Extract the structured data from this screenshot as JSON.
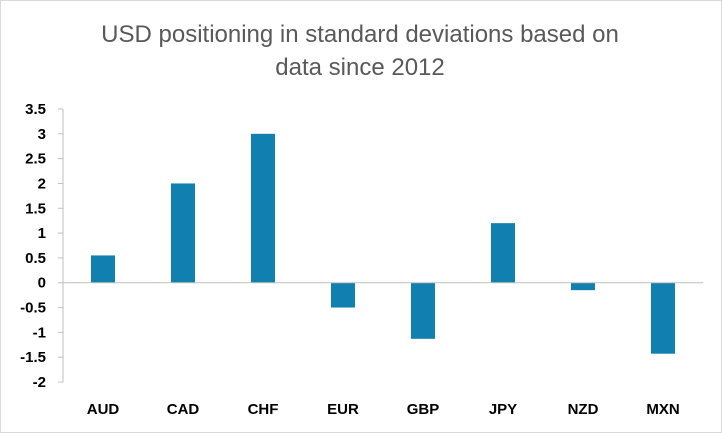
{
  "chart_data": {
    "type": "bar",
    "title": "USD positioning in standard deviations based on\ndata since 2012",
    "categories": [
      "AUD",
      "CAD",
      "CHF",
      "EUR",
      "GBP",
      "JPY",
      "NZD",
      "MXN"
    ],
    "values": [
      0.55,
      2.0,
      3.0,
      -0.5,
      -1.13,
      1.2,
      -0.15,
      -1.43
    ],
    "ylim": [
      -2,
      3.5
    ],
    "yticks": [
      -2,
      -1.5,
      -1,
      -0.5,
      0,
      0.5,
      1,
      1.5,
      2,
      2.5,
      3,
      3.5
    ],
    "ytick_labels": [
      "-2",
      "-1.5",
      "-1",
      "-0.5",
      "0",
      "0.5",
      "1",
      "1.5",
      "2",
      "2.5",
      "3",
      "3.5"
    ],
    "grid": false,
    "legend": "none",
    "bar_color": "#0f80b0"
  }
}
